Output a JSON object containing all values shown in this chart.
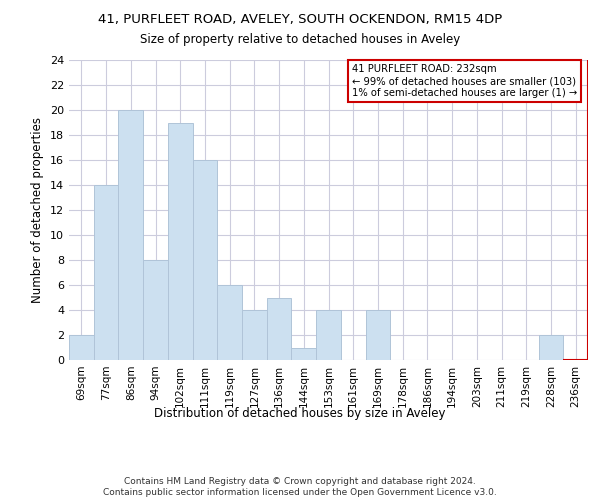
{
  "title1": "41, PURFLEET ROAD, AVELEY, SOUTH OCKENDON, RM15 4DP",
  "title2": "Size of property relative to detached houses in Aveley",
  "xlabel": "Distribution of detached houses by size in Aveley",
  "ylabel": "Number of detached properties",
  "categories": [
    "69sqm",
    "77sqm",
    "86sqm",
    "94sqm",
    "102sqm",
    "111sqm",
    "119sqm",
    "127sqm",
    "136sqm",
    "144sqm",
    "153sqm",
    "161sqm",
    "169sqm",
    "178sqm",
    "186sqm",
    "194sqm",
    "203sqm",
    "211sqm",
    "219sqm",
    "228sqm",
    "236sqm"
  ],
  "values": [
    2,
    14,
    20,
    8,
    19,
    16,
    6,
    4,
    5,
    1,
    4,
    0,
    4,
    0,
    0,
    0,
    0,
    0,
    0,
    2,
    0
  ],
  "bar_color": "#cce0f0",
  "bar_edge_color": "#b0c4d8",
  "highlight_bar_index": 20,
  "highlight_bar_edge_color": "#cc0000",
  "vline_color": "#cc0000",
  "annotation_text": "41 PURFLEET ROAD: 232sqm\n← 99% of detached houses are smaller (103)\n1% of semi-detached houses are larger (1) →",
  "annotation_box_color": "#ffffff",
  "annotation_box_edge_color": "#cc0000",
  "ylim": [
    0,
    24
  ],
  "yticks": [
    0,
    2,
    4,
    6,
    8,
    10,
    12,
    14,
    16,
    18,
    20,
    22,
    24
  ],
  "footer": "Contains HM Land Registry data © Crown copyright and database right 2024.\nContains public sector information licensed under the Open Government Licence v3.0.",
  "bg_color": "#ffffff",
  "grid_color": "#ccccdd"
}
